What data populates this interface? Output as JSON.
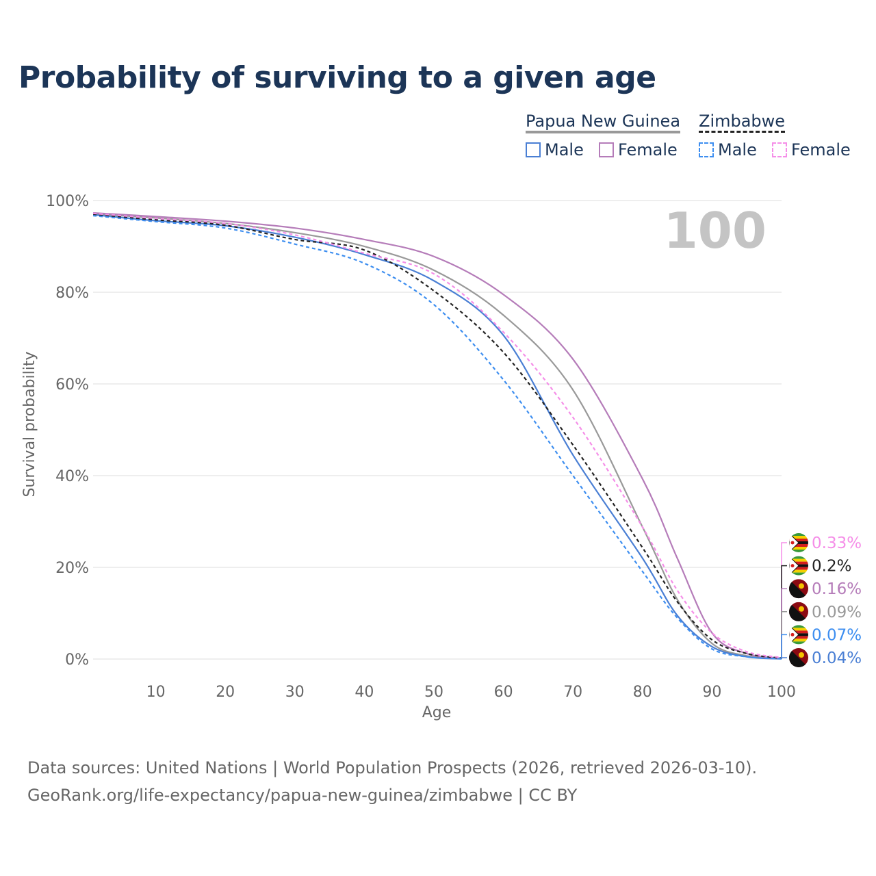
{
  "title": "Probability of surviving to a given age",
  "legend": {
    "groups": [
      {
        "country": "Papua New Guinea",
        "color": "#999999",
        "dash": false,
        "items": [
          {
            "label": "Male",
            "color": "#4a7fd4"
          },
          {
            "label": "Female",
            "color": "#b57cb9"
          }
        ]
      },
      {
        "country": "Zimbabwe",
        "color": "#222222",
        "dash": true,
        "items": [
          {
            "label": "Male",
            "color": "#3d8ef0"
          },
          {
            "label": "Female",
            "color": "#f58ee8"
          }
        ]
      }
    ]
  },
  "big_label": "100",
  "footer": {
    "line1": "Data sources: United Nations | World Population Prospects (2026, retrieved 2026-03-10).",
    "line2": "GeoRank.org/life-expectancy/papua-new-guinea/zimbabwe | CC BY"
  },
  "chart_data": {
    "type": "line",
    "title": "Probability of surviving to a given age",
    "xlabel": "Age",
    "ylabel": "Survival probability",
    "xlim": [
      0,
      100
    ],
    "ylim": [
      0,
      100
    ],
    "xticks": [
      "10",
      "20",
      "30",
      "40",
      "50",
      "60",
      "70",
      "80",
      "90",
      "100"
    ],
    "yticks": [
      "0%",
      "20%",
      "40%",
      "60%",
      "80%",
      "100%"
    ],
    "grid": true,
    "x": [
      1,
      10,
      20,
      30,
      40,
      50,
      60,
      70,
      80,
      85,
      90,
      95,
      100
    ],
    "series": [
      {
        "name": "Papua New Guinea Total",
        "color": "#999999",
        "dash": false,
        "flag": "png",
        "end_label": "0.09%",
        "values": [
          97.1,
          96.2,
          95,
          93,
          90,
          84.8,
          75,
          58.7,
          28.8,
          13,
          3.4,
          0.7,
          0.09
        ]
      },
      {
        "name": "Papua New Guinea Male",
        "color": "#4a7fd4",
        "dash": false,
        "flag": "png",
        "end_label": "0.04%",
        "values": [
          96.9,
          95.6,
          94.5,
          92,
          88.2,
          82.5,
          70.6,
          44.5,
          22,
          9.5,
          2.7,
          0.5,
          0.04
        ]
      },
      {
        "name": "Papua New Guinea Female",
        "color": "#b57cb9",
        "dash": false,
        "flag": "png",
        "end_label": "0.16%",
        "values": [
          97.3,
          96.5,
          95.5,
          94,
          91.5,
          87.8,
          79.5,
          65.4,
          39.3,
          22,
          5.7,
          1.2,
          0.16
        ]
      },
      {
        "name": "Zimbabwe Total",
        "color": "#222222",
        "dash": true,
        "flag": "zwe",
        "end_label": "0.2%",
        "values": [
          96.9,
          95.8,
          94.6,
          91.5,
          89.2,
          80.3,
          66.9,
          46.7,
          24.3,
          12.5,
          4.2,
          1.2,
          0.2
        ]
      },
      {
        "name": "Zimbabwe Male",
        "color": "#3d8ef0",
        "dash": true,
        "flag": "zwe",
        "end_label": "0.07%",
        "values": [
          96.7,
          95.4,
          94,
          90.5,
          86.3,
          77.3,
          60.9,
          40,
          19.1,
          9,
          2.2,
          0.5,
          0.07
        ]
      },
      {
        "name": "Zimbabwe Female",
        "color": "#f58ee8",
        "dash": true,
        "flag": "zwe",
        "end_label": "0.33%",
        "values": [
          97.2,
          96.1,
          95,
          92.5,
          88.5,
          84,
          71.3,
          52.7,
          28.8,
          15,
          5.7,
          1.6,
          0.33
        ]
      }
    ],
    "end_label_order": [
      "0.33%",
      "0.2%",
      "0.16%",
      "0.09%",
      "0.07%",
      "0.04%"
    ]
  }
}
